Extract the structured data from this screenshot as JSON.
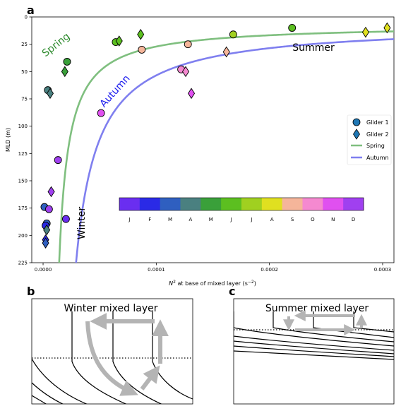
{
  "panels": {
    "a": {
      "letter": "a"
    },
    "b": {
      "letter": "b",
      "title": "Winter mixed layer"
    },
    "c": {
      "letter": "c",
      "title": "Summer mixed layer"
    }
  },
  "chart_data": {
    "type": "scatter",
    "xlabel": "N² at base of mixed layer (s⁻²)",
    "ylabel": "MLD (m)",
    "xlim": [
      -1e-05,
      0.00031
    ],
    "ylim": [
      225,
      0
    ],
    "y_inverted": true,
    "xticks": [
      0,
      0.0001,
      0.0002,
      0.0003
    ],
    "xtick_labels": [
      "0.0000",
      "0.0001",
      "0.0002",
      "0.0003"
    ],
    "yticks": [
      0,
      25,
      50,
      75,
      100,
      125,
      150,
      175,
      200,
      225
    ],
    "ytick_labels": [
      "0",
      "25",
      "50",
      "75",
      "100",
      "125",
      "150",
      "175",
      "200",
      "225"
    ],
    "annotations": [
      {
        "text": "Spring",
        "color": "#2e8b2e"
      },
      {
        "text": "Autumn",
        "color": "#1a1aee"
      },
      {
        "text": "Summer",
        "color": "#000000"
      },
      {
        "text": "Winter",
        "color": "#000000"
      }
    ],
    "legend": {
      "placement": "right",
      "entries": [
        {
          "label": "Glider 1",
          "marker": "circle",
          "color": "#1f77b4"
        },
        {
          "label": "Glider 2",
          "marker": "diamond",
          "color": "#1f77b4"
        },
        {
          "label": "Spring",
          "marker": "line",
          "color": "#7fbf7f"
        },
        {
          "label": "Autumn",
          "marker": "line",
          "color": "#7f7fef"
        }
      ]
    },
    "curves": [
      {
        "name": "Spring",
        "color": "#7fbf7f",
        "formula": "MLD = 7 + 0.0019 / (N2 - 0.0000055)",
        "n2_start": 6.3e-06
      },
      {
        "name": "Autumn",
        "color": "#7f7fef",
        "formula": "MLD = 6 + 0.0043 / (N2 - 0.0000095)",
        "n2_start": 1.05e-05
      }
    ],
    "month_colorbar": {
      "labels": [
        "J",
        "F",
        "M",
        "A",
        "M",
        "J",
        "J",
        "A",
        "S",
        "O",
        "N",
        "D"
      ],
      "colors": [
        "#6a2ef0",
        "#2a2ae6",
        "#2f5fc0",
        "#4a8080",
        "#3aa03a",
        "#5cbf20",
        "#a0d020",
        "#e0e020",
        "#f5b59a",
        "#f589d0",
        "#e050f0",
        "#a040f0"
      ]
    },
    "series": [
      {
        "name": "Glider 1",
        "marker": "circle",
        "points": [
          {
            "x": 4.2e-06,
            "y": 67,
            "month": 4
          },
          {
            "x": 1.2e-06,
            "y": 174,
            "month": 3
          },
          {
            "x": 5.2e-06,
            "y": 176,
            "month": 12
          },
          {
            "x": 3.2e-06,
            "y": 189,
            "month": 3
          },
          {
            "x": 2.2e-06,
            "y": 191,
            "month": 2
          },
          {
            "x": 1.32e-05,
            "y": 131,
            "month": 12
          },
          {
            "x": 2.02e-05,
            "y": 185,
            "month": 1
          },
          {
            "x": 2.12e-05,
            "y": 41,
            "month": 5
          },
          {
            "x": 5.12e-05,
            "y": 88,
            "month": 11
          },
          {
            "x": 6.42e-05,
            "y": 23,
            "month": 6
          },
          {
            "x": 8.72e-05,
            "y": 30,
            "month": 9
          },
          {
            "x": 0.000122,
            "y": 48,
            "month": 10
          },
          {
            "x": 0.000128,
            "y": 25,
            "month": 9
          },
          {
            "x": 0.000168,
            "y": 16,
            "month": 7
          },
          {
            "x": 0.00022,
            "y": 10,
            "month": 6
          }
        ]
      },
      {
        "name": "Glider 2",
        "marker": "diamond",
        "points": [
          {
            "x": 6.2e-06,
            "y": 70,
            "month": 4
          },
          {
            "x": 7.2e-06,
            "y": 160,
            "month": 12
          },
          {
            "x": 3.2e-06,
            "y": 195,
            "month": 4
          },
          {
            "x": 2.2e-06,
            "y": 204,
            "month": 2
          },
          {
            "x": 2.2e-06,
            "y": 207,
            "month": 3
          },
          {
            "x": 1.92e-05,
            "y": 50,
            "month": 5
          },
          {
            "x": 6.72e-05,
            "y": 22,
            "month": 6
          },
          {
            "x": 8.62e-05,
            "y": 16,
            "month": 6
          },
          {
            "x": 0.000126,
            "y": 50,
            "month": 10
          },
          {
            "x": 0.000131,
            "y": 70,
            "month": 11
          },
          {
            "x": 0.000162,
            "y": 32,
            "month": 9
          },
          {
            "x": 0.000285,
            "y": 14,
            "month": 8
          },
          {
            "x": 0.000304,
            "y": 10,
            "month": 8
          }
        ]
      }
    ]
  }
}
